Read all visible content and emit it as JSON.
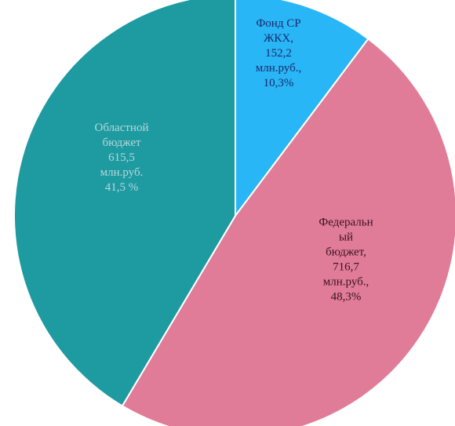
{
  "chart_data": {
    "type": "pie",
    "title": "",
    "start_angle_deg": 0,
    "direction": "clockwise",
    "slices": [
      {
        "name": "Фонд СР ЖКХ",
        "value": 152.2,
        "percent": 10.3,
        "color": "#29b6f6",
        "label_lines": [
          "Фонд СР",
          "ЖКХ,",
          "152,2",
          "млн.руб.,",
          "10,3%"
        ],
        "label_color": "#1a2a6c"
      },
      {
        "name": "Федеральный бюджет",
        "value": 716.7,
        "percent": 48.3,
        "color": "#e07c98",
        "label_lines": [
          "Федеральн",
          "ый",
          "бюджет,",
          "716,7",
          "млн.руб.,",
          "48,3%"
        ],
        "label_color": "#3a1020"
      },
      {
        "name": "Областной бюджет",
        "value": 615.5,
        "percent": 41.5,
        "color": "#1e9aa1",
        "label_lines": [
          "Областной",
          "бюджет",
          "615,5",
          "млн.руб.",
          "41,5 %"
        ],
        "label_color": "#b9d8da"
      }
    ]
  }
}
